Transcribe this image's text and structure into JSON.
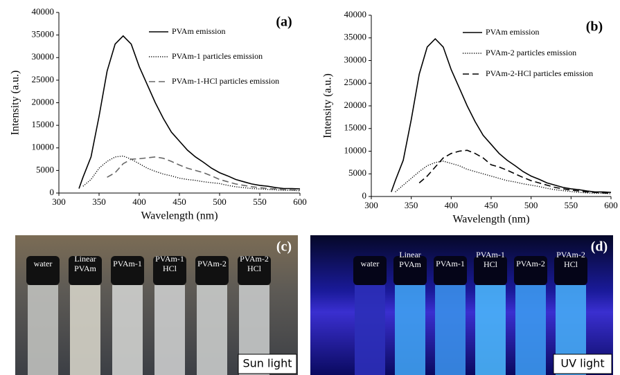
{
  "chart_data": [
    {
      "type": "line",
      "panel_label": "(a)",
      "x_label": "Wavelength (nm)",
      "y_label": "Intensity (a.u.)",
      "x": [
        325,
        330,
        340,
        350,
        360,
        370,
        380,
        390,
        400,
        410,
        420,
        430,
        440,
        450,
        460,
        470,
        480,
        490,
        500,
        510,
        520,
        530,
        540,
        550,
        560,
        570,
        580,
        590,
        600
      ],
      "series": [
        {
          "name": "PVAm emission",
          "color": "#000000",
          "dash": "solid",
          "values": [
            1000,
            3500,
            8000,
            17000,
            27000,
            33000,
            34800,
            33000,
            28000,
            24000,
            20000,
            16500,
            13500,
            11500,
            9500,
            8000,
            6800,
            5500,
            4500,
            3800,
            3000,
            2500,
            2000,
            1700,
            1500,
            1200,
            1000,
            1000,
            900
          ]
        },
        {
          "name": "PVAm-1 particles emission",
          "color": "#000000",
          "dash": "dotted",
          "values": [
            null,
            1500,
            3000,
            5500,
            7000,
            8000,
            8200,
            7500,
            6500,
            5500,
            4800,
            4200,
            3800,
            3300,
            3000,
            2800,
            2500,
            2300,
            2100,
            1700,
            1400,
            1200,
            1000,
            900,
            800,
            700,
            600,
            600,
            500
          ]
        },
        {
          "name": "PVAm-1-HCl particles emission",
          "color": "#666666",
          "dash": "dashed",
          "values": [
            null,
            null,
            null,
            null,
            3500,
            4500,
            6500,
            7500,
            7600,
            7800,
            8000,
            7700,
            7000,
            6200,
            5500,
            5000,
            4500,
            3800,
            3000,
            2500,
            2000,
            1700,
            1400,
            1200,
            1000,
            900,
            800,
            700,
            600
          ]
        }
      ],
      "xlim": [
        300,
        600
      ],
      "xticks": [
        300,
        350,
        400,
        450,
        500,
        550,
        600
      ],
      "ylim": [
        0,
        40000
      ],
      "yticks": [
        0,
        5000,
        10000,
        15000,
        20000,
        25000,
        30000,
        35000,
        40000
      ]
    },
    {
      "type": "line",
      "panel_label": "(b)",
      "x_label": "Wavelength (nm)",
      "y_label": "Intensity (a.u.)",
      "x": [
        325,
        330,
        340,
        350,
        360,
        370,
        380,
        390,
        400,
        410,
        420,
        430,
        440,
        450,
        460,
        470,
        480,
        490,
        500,
        510,
        520,
        530,
        540,
        550,
        560,
        570,
        580,
        590,
        600
      ],
      "series": [
        {
          "name": "PVAm emission",
          "color": "#000000",
          "dash": "solid",
          "values": [
            1000,
            3500,
            8000,
            17000,
            27000,
            33000,
            34800,
            33000,
            28000,
            24000,
            20000,
            16500,
            13500,
            11500,
            9500,
            8000,
            6800,
            5500,
            4500,
            3800,
            3000,
            2500,
            2000,
            1700,
            1500,
            1200,
            1000,
            1000,
            900
          ]
        },
        {
          "name": "PVAm-2 particles emission",
          "color": "#000000",
          "dash": "dotted",
          "values": [
            null,
            1000,
            2500,
            4000,
            5500,
            6800,
            7500,
            7800,
            7300,
            6800,
            6000,
            5500,
            5000,
            4500,
            4000,
            3500,
            3200,
            2800,
            2500,
            2200,
            1800,
            1500,
            1300,
            1100,
            900,
            800,
            700,
            700,
            600
          ]
        },
        {
          "name": "PVAm-2-HCl particles emission",
          "color": "#000000",
          "dash": "dashed",
          "values": [
            null,
            null,
            null,
            null,
            3000,
            4500,
            6500,
            8500,
            9500,
            10000,
            10200,
            9500,
            8500,
            7000,
            6500,
            5800,
            5000,
            4200,
            3500,
            3000,
            2500,
            2000,
            1700,
            1400,
            1200,
            1000,
            900,
            800,
            700
          ]
        }
      ],
      "xlim": [
        300,
        600
      ],
      "xticks": [
        300,
        350,
        400,
        450,
        500,
        550,
        600
      ],
      "ylim": [
        0,
        40000
      ],
      "yticks": [
        0,
        5000,
        10000,
        15000,
        20000,
        25000,
        30000,
        35000,
        40000
      ]
    }
  ],
  "photos": [
    {
      "panel_label": "(c)",
      "caption": "Sun light",
      "labels": [
        [
          "water"
        ],
        [
          "Linear",
          "PVAm"
        ],
        [
          "PVAm-1"
        ],
        [
          "PVAm-1",
          "HCl"
        ],
        [
          "PVAm-2"
        ],
        [
          "PVAm-2",
          "HCl"
        ]
      ]
    },
    {
      "panel_label": "(d)",
      "caption": "UV light",
      "labels": [
        [
          "water"
        ],
        [
          "Linear",
          "PVAm"
        ],
        [
          "PVAm-1"
        ],
        [
          "PVAm-1",
          "HCl"
        ],
        [
          "PVAm-2"
        ],
        [
          "PVAm-2",
          "HCl"
        ]
      ]
    }
  ]
}
